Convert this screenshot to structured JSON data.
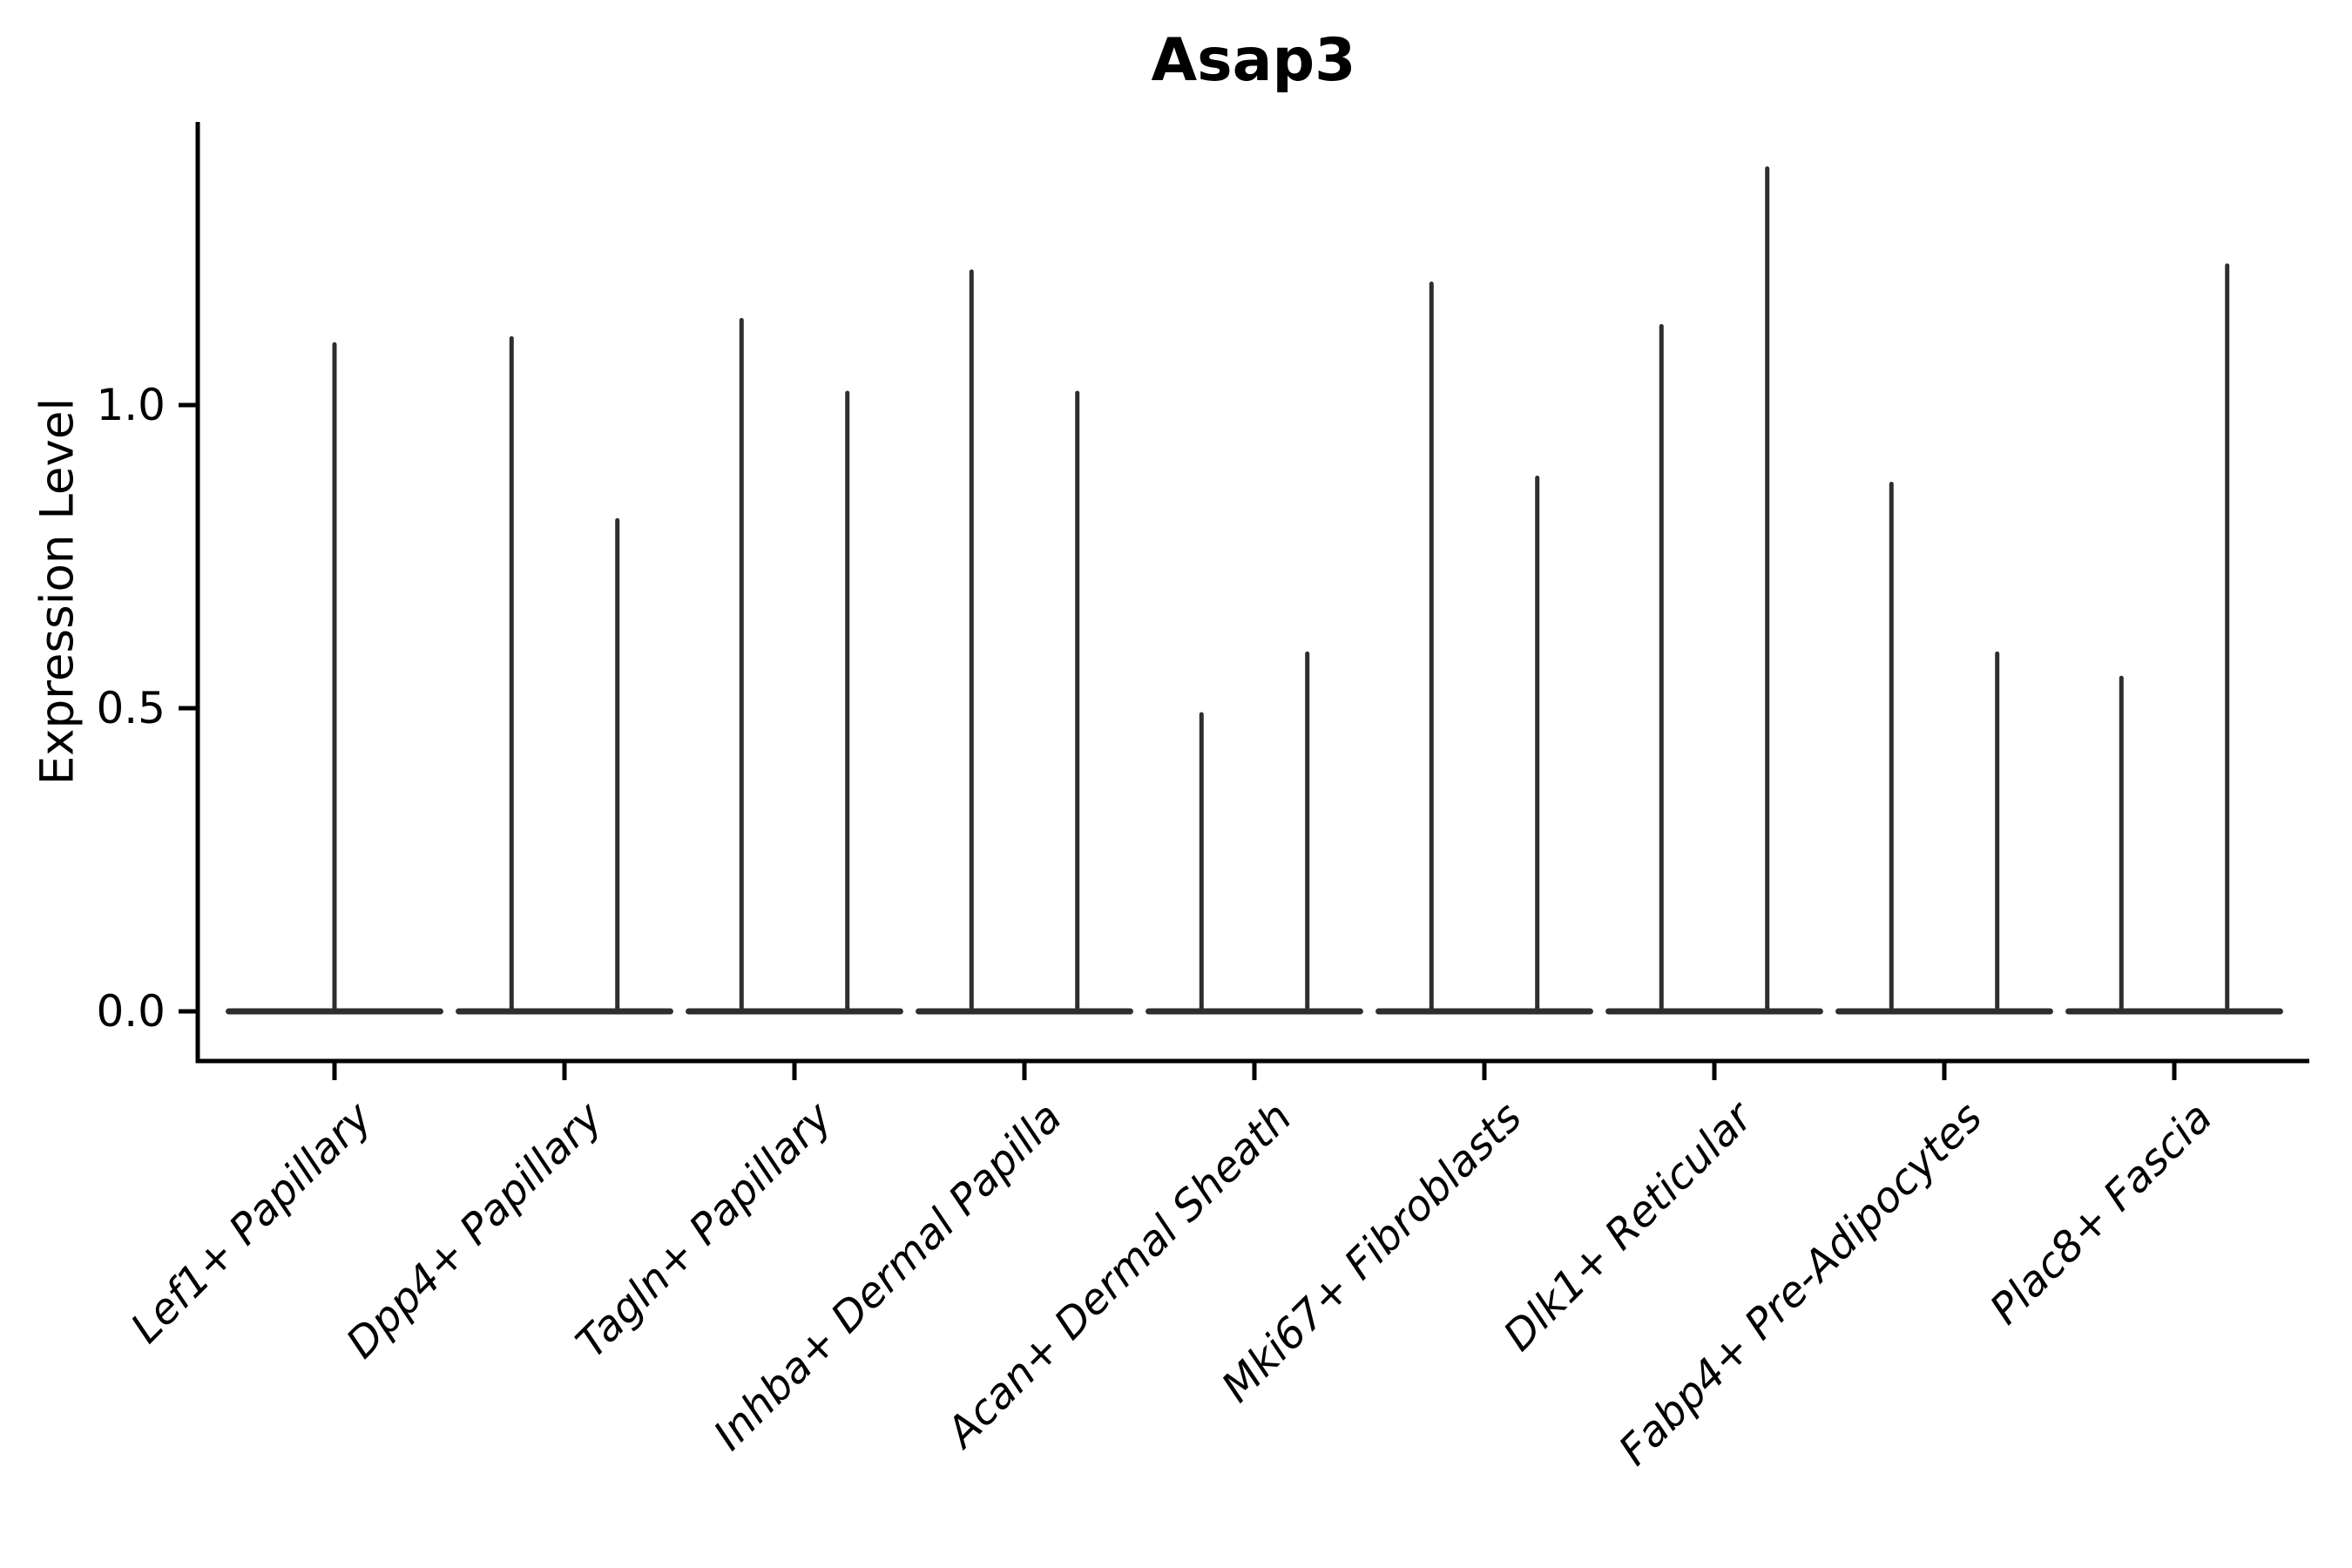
{
  "figure": {
    "title": "Asap3"
  },
  "chart_data": {
    "type": "violin",
    "title": "Asap3",
    "xlabel": "",
    "ylabel": "Expression Level",
    "ylim": [
      -0.08,
      1.47
    ],
    "yticks": [
      0.0,
      0.5,
      1.0
    ],
    "ytick_labels": [
      "0.0",
      "0.5",
      "1.0"
    ],
    "grid": false,
    "legend_position": "none",
    "style_note": "zero-inflated single-cell expression violins: each violin collapses to a wide flat base at 0 with one thin vertical spike reaching the maximum expression value; spike offsets are in category-width units",
    "categories": [
      "Lef1+ Papillary",
      "Dpp4+ Papillary",
      "Tagln+ Papillary",
      "Inhba+ Dermal Papilla",
      "Acan+ Dermal Sheath",
      "Mki67+ Fibroblasts",
      "Dlk1+ Reticular",
      "Fabp4+ Pre-Adipocytes",
      "Plac8+ Fascia"
    ],
    "violins": [
      {
        "category": "Lef1+ Papillary",
        "spikes": [
          {
            "offset": 0.0,
            "max": 1.1
          }
        ]
      },
      {
        "category": "Dpp4+ Papillary",
        "spikes": [
          {
            "offset": -0.23,
            "max": 1.11
          },
          {
            "offset": 0.23,
            "max": 0.81
          }
        ]
      },
      {
        "category": "Tagln+ Papillary",
        "spikes": [
          {
            "offset": -0.23,
            "max": 1.14
          },
          {
            "offset": 0.23,
            "max": 1.02
          }
        ]
      },
      {
        "category": "Inhba+ Dermal Papilla",
        "spikes": [
          {
            "offset": -0.23,
            "max": 1.22
          },
          {
            "offset": 0.23,
            "max": 1.02
          }
        ]
      },
      {
        "category": "Acan+ Dermal Sheath",
        "spikes": [
          {
            "offset": -0.23,
            "max": 0.49
          },
          {
            "offset": 0.23,
            "max": 0.59
          }
        ]
      },
      {
        "category": "Mki67+ Fibroblasts",
        "spikes": [
          {
            "offset": -0.23,
            "max": 1.2
          },
          {
            "offset": 0.23,
            "max": 0.88
          }
        ]
      },
      {
        "category": "Dlk1+ Reticular",
        "spikes": [
          {
            "offset": -0.23,
            "max": 1.13
          },
          {
            "offset": 0.23,
            "max": 1.39
          }
        ]
      },
      {
        "category": "Fabp4+ Pre-Adipocytes",
        "spikes": [
          {
            "offset": -0.23,
            "max": 0.87
          },
          {
            "offset": 0.23,
            "max": 0.59
          }
        ]
      },
      {
        "category": "Plac8+ Fascia",
        "spikes": [
          {
            "offset": -0.23,
            "max": 0.55
          },
          {
            "offset": 0.23,
            "max": 1.23
          }
        ]
      }
    ],
    "colors": {
      "violin_line": "#2e2e2e",
      "axis": "#000000",
      "text": "#000000",
      "background": "#ffffff"
    }
  }
}
